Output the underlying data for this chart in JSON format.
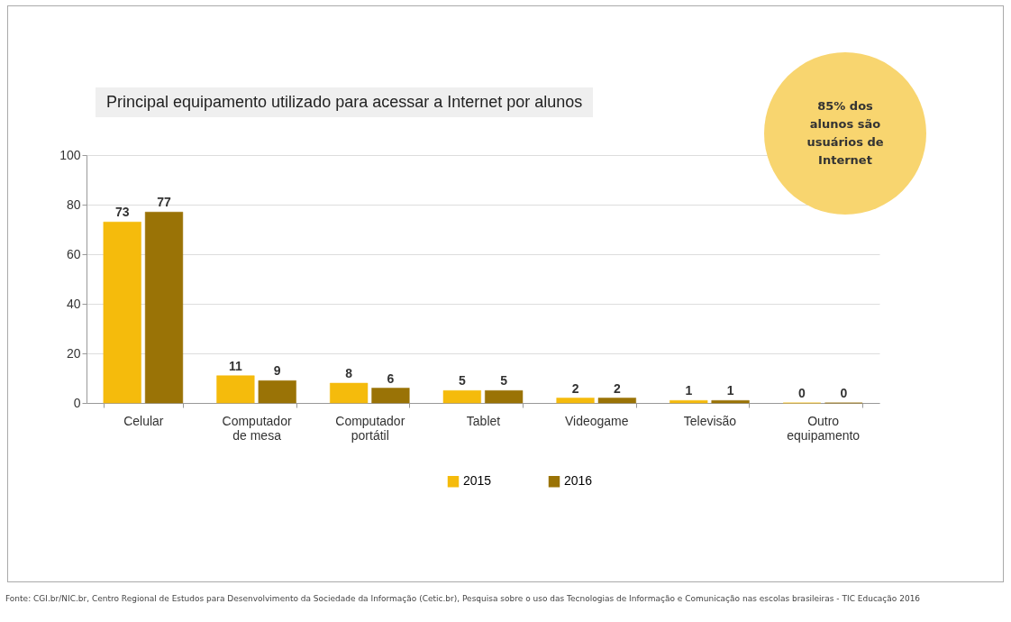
{
  "chart_data": {
    "type": "bar",
    "title": "Principal equipamento utilizado para acessar a Internet por alunos",
    "categories": [
      "Celular",
      "Computador de mesa",
      "Computador portátil",
      "Tablet",
      "Videogame",
      "Televisão",
      "Outro equipamento"
    ],
    "series": [
      {
        "name": "2015",
        "color": "#f5bb0c",
        "values": [
          73,
          11,
          8,
          5,
          2,
          1,
          0
        ]
      },
      {
        "name": "2016",
        "color": "#9a7306",
        "values": [
          77,
          9,
          6,
          5,
          2,
          1,
          0
        ]
      }
    ],
    "ylim": [
      0,
      100
    ],
    "yticks": [
      0,
      20,
      40,
      60,
      80,
      100
    ],
    "grid": "y",
    "legend": "bottom",
    "data_labels": true,
    "annotations": [
      "85% dos alunos são usuários de Internet",
      "Fonte: CGI.br/NIC.br, Centro Regional de Estudos para Desenvolvimento da Sociedade da Informação (Cetic.br), Pesquisa sobre o uso das Tecnologias de Informação e Comunicação nas escolas brasileiras - TIC Educação 2016"
    ]
  }
}
